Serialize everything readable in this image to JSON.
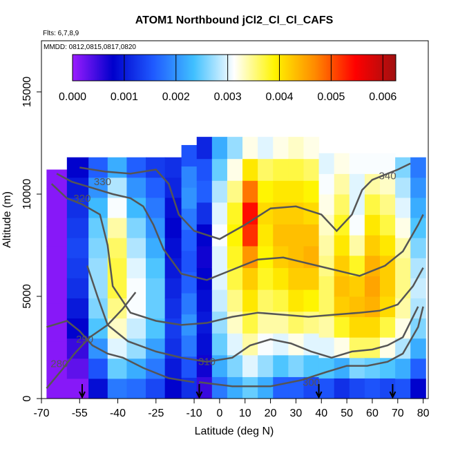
{
  "chart_data": {
    "type": "heatmap",
    "title": "ATOM1 Northbound jCl2_Cl_Cl_CAFS",
    "subtitle_flights": "Flts: 6,7,8,9",
    "subtitle_dates": "MMDD: 0812,0815,0817,0820",
    "xlabel": "Latitude (deg N)",
    "ylabel": "Altitude (m)",
    "xlim": [
      -70,
      82
    ],
    "ylim": [
      0,
      17500
    ],
    "x_ticks": [
      -70,
      -55,
      -40,
      -25,
      -10,
      0,
      10,
      20,
      30,
      40,
      50,
      60,
      70,
      80
    ],
    "y_ticks": [
      0,
      5000,
      10000,
      15000
    ],
    "colorbar": {
      "range": [
        0,
        0.00625
      ],
      "ticks": [
        "0.000",
        "0.001",
        "0.002",
        "0.003",
        "0.004",
        "0.005",
        "0.006"
      ],
      "tick_values": [
        0,
        0.001,
        0.002,
        0.003,
        0.004,
        0.005,
        0.006
      ],
      "colors": [
        "#9b1cff",
        "#0000cc",
        "#1f5aff",
        "#40c0ff",
        "#ffffff",
        "#fff500",
        "#ff8a00",
        "#ff0000",
        "#a01010"
      ]
    },
    "flight_arrows_lat": [
      -54,
      -8,
      39,
      68
    ],
    "columns": [
      {
        "lat": -65,
        "top": 11200,
        "values": [
          0.0001,
          0.0001,
          0.0001,
          0.0001,
          0.0001,
          0.0001,
          0.0001,
          0.0001,
          0.0001,
          0.0001,
          0.0001,
          0.0001
        ]
      },
      {
        "lat": -55,
        "top": 11800,
        "values": [
          0.0001,
          0.0003,
          0.0005,
          0.0008,
          0.001,
          0.0012,
          0.0013,
          0.0014,
          0.0013,
          0.0012,
          0.001,
          0.0008
        ]
      },
      {
        "lat": -48,
        "top": 11800,
        "values": [
          0.0009,
          0.0015,
          0.002,
          0.0024,
          0.0026,
          0.0027,
          0.0027,
          0.0026,
          0.0025,
          0.0023,
          0.002,
          0.0016
        ]
      },
      {
        "lat": -40,
        "top": 11800,
        "values": [
          0.0018,
          0.0025,
          0.003,
          0.0033,
          0.0035,
          0.0037,
          0.0037,
          0.0036,
          0.0034,
          0.0031,
          0.0028,
          0.0022
        ]
      },
      {
        "lat": -33,
        "top": 11800,
        "values": [
          0.0017,
          0.0022,
          0.0027,
          0.0029,
          0.0031,
          0.0031,
          0.003,
          0.0028,
          0.0026,
          0.0023,
          0.002,
          0.0016
        ]
      },
      {
        "lat": -25,
        "top": 11800,
        "values": [
          0.0014,
          0.0018,
          0.0021,
          0.0024,
          0.0025,
          0.0025,
          0.0024,
          0.0022,
          0.002,
          0.0018,
          0.0016,
          0.0013
        ]
      },
      {
        "lat": -18,
        "top": 11800,
        "values": [
          0.0008,
          0.001,
          0.0012,
          0.0013,
          0.0012,
          0.0011,
          0.001,
          0.0009,
          0.0008,
          0.0009,
          0.0011,
          0.0012
        ]
      },
      {
        "lat": -12,
        "top": 12400,
        "values": [
          0.0012,
          0.0015,
          0.0018,
          0.002,
          0.0018,
          0.0016,
          0.0015,
          0.0016,
          0.0018,
          0.002,
          0.0019,
          0.0015
        ]
      },
      {
        "lat": -6,
        "top": 12800,
        "values": [
          0.0005,
          0.0007,
          0.0009,
          0.001,
          0.0009,
          0.0008,
          0.0007,
          0.0008,
          0.0012,
          0.0016,
          0.0015,
          0.0011
        ]
      },
      {
        "lat": 0,
        "top": 12800,
        "values": [
          0.0018,
          0.0022,
          0.0025,
          0.0027,
          0.0029,
          0.003,
          0.003,
          0.0031,
          0.003,
          0.0028,
          0.0025,
          0.0022
        ]
      },
      {
        "lat": 6,
        "top": 12800,
        "values": [
          0.0022,
          0.0026,
          0.003,
          0.0033,
          0.0035,
          0.0037,
          0.0038,
          0.0039,
          0.0038,
          0.0035,
          0.0032,
          0.0027
        ]
      },
      {
        "lat": 12,
        "top": 12800,
        "values": [
          0.0025,
          0.003,
          0.0034,
          0.0037,
          0.004,
          0.0042,
          0.0046,
          0.0052,
          0.0054,
          0.0048,
          0.004,
          0.0032
        ]
      },
      {
        "lat": 18,
        "top": 12800,
        "values": [
          0.0022,
          0.0027,
          0.0031,
          0.0034,
          0.0036,
          0.0038,
          0.0039,
          0.004,
          0.0041,
          0.0039,
          0.0036,
          0.003
        ]
      },
      {
        "lat": 24,
        "top": 12800,
        "values": [
          0.0016,
          0.0024,
          0.003,
          0.0034,
          0.0037,
          0.004,
          0.0042,
          0.0043,
          0.0042,
          0.004,
          0.0037,
          0.0032
        ]
      },
      {
        "lat": 30,
        "top": 12800,
        "values": [
          0.0016,
          0.0026,
          0.0032,
          0.0036,
          0.004,
          0.0042,
          0.0043,
          0.0043,
          0.0042,
          0.004,
          0.0037,
          0.0033
        ]
      },
      {
        "lat": 36,
        "top": 12800,
        "values": [
          0.0014,
          0.0024,
          0.003,
          0.0035,
          0.0039,
          0.0042,
          0.0044,
          0.0043,
          0.0041,
          0.0039,
          0.0036,
          0.0032
        ]
      },
      {
        "lat": 42,
        "top": 12000,
        "values": [
          0.0015,
          0.0024,
          0.003,
          0.0034,
          0.0036,
          0.0036,
          0.0035,
          0.0034,
          0.0033,
          0.0032,
          0.0031,
          0.003
        ]
      },
      {
        "lat": 48,
        "top": 12000,
        "values": [
          0.0012,
          0.0022,
          0.0032,
          0.0038,
          0.0042,
          0.0043,
          0.0042,
          0.004,
          0.0038,
          0.0036,
          0.0034,
          0.0032
        ]
      },
      {
        "lat": 54,
        "top": 12000,
        "values": [
          0.0014,
          0.0026,
          0.0036,
          0.0041,
          0.0043,
          0.0042,
          0.0038,
          0.0034,
          0.0031,
          0.003,
          0.003,
          0.0031
        ]
      },
      {
        "lat": 60,
        "top": 12000,
        "values": [
          0.0015,
          0.0025,
          0.0036,
          0.0041,
          0.0044,
          0.0045,
          0.0044,
          0.0042,
          0.004,
          0.0037,
          0.0034,
          0.0031
        ]
      },
      {
        "lat": 66,
        "top": 12000,
        "values": [
          0.0014,
          0.0024,
          0.0032,
          0.0037,
          0.0041,
          0.0042,
          0.0042,
          0.004,
          0.0037,
          0.0035,
          0.0033,
          0.0031
        ]
      },
      {
        "lat": 72,
        "top": 11800,
        "values": [
          0.0015,
          0.0022,
          0.0028,
          0.0032,
          0.0034,
          0.0035,
          0.0035,
          0.0034,
          0.0032,
          0.003,
          0.0028,
          0.0026
        ]
      },
      {
        "lat": 78,
        "top": 11800,
        "values": [
          0.0008,
          0.0016,
          0.0022,
          0.0026,
          0.0028,
          0.0029,
          0.0028,
          0.0026,
          0.0024,
          0.0022,
          0.002,
          0.0018
        ]
      }
    ],
    "contours": [
      {
        "label": "280",
        "points": [
          [
            -68,
            500
          ],
          [
            -62,
            1400
          ],
          [
            -57,
            2200
          ],
          [
            -51,
            3000
          ],
          [
            -44,
            3600
          ],
          [
            -38,
            4400
          ],
          [
            -33,
            5200
          ]
        ],
        "label_at": [
          -63,
          1700
        ]
      },
      {
        "label": "290",
        "points": [
          [
            -68,
            3500
          ],
          [
            -60,
            3800
          ],
          [
            -55,
            3300
          ],
          [
            -50,
            2600
          ],
          [
            -44,
            2200
          ],
          [
            -38,
            2000
          ],
          [
            -30,
            1500
          ],
          [
            -20,
            1000
          ],
          [
            -10,
            800
          ]
        ],
        "label_at": [
          -53,
          2900
        ]
      },
      {
        "label": "300",
        "points": [
          [
            -8,
            800
          ],
          [
            5,
            600
          ],
          [
            20,
            600
          ],
          [
            32,
            900
          ],
          [
            42,
            1300
          ],
          [
            50,
            1600
          ],
          [
            58,
            1600
          ],
          [
            66,
            1800
          ],
          [
            72,
            2200
          ],
          [
            78,
            3500
          ],
          [
            80,
            4500
          ]
        ],
        "label_at": [
          36,
          800
        ]
      },
      {
        "label": "310",
        "points": [
          [
            -52,
            6500
          ],
          [
            -48,
            5000
          ],
          [
            -44,
            3600
          ],
          [
            -36,
            2800
          ],
          [
            -25,
            2300
          ],
          [
            -15,
            2000
          ],
          [
            -5,
            1800
          ],
          [
            5,
            2000
          ],
          [
            12,
            2600
          ],
          [
            20,
            2900
          ],
          [
            28,
            2700
          ],
          [
            36,
            2300
          ],
          [
            44,
            2000
          ],
          [
            52,
            2300
          ],
          [
            60,
            2400
          ],
          [
            66,
            2600
          ],
          [
            72,
            3000
          ],
          [
            78,
            4500
          ]
        ],
        "label_at": [
          -5,
          1800
        ]
      },
      {
        "label": "320",
        "points": [
          [
            -66,
            10500
          ],
          [
            -60,
            9800
          ],
          [
            -54,
            9500
          ],
          [
            -47,
            9000
          ],
          [
            -44,
            7500
          ],
          [
            -42,
            5500
          ],
          [
            -35,
            4200
          ],
          [
            -25,
            3800
          ],
          [
            -15,
            3600
          ],
          [
            -5,
            3700
          ],
          [
            5,
            4000
          ],
          [
            15,
            4200
          ],
          [
            25,
            4100
          ],
          [
            35,
            4000
          ],
          [
            45,
            4100
          ],
          [
            55,
            4200
          ],
          [
            63,
            4300
          ],
          [
            70,
            4600
          ],
          [
            76,
            5500
          ],
          [
            80,
            6400
          ]
        ],
        "label_at": [
          -54,
          9800
        ]
      },
      {
        "label": "330",
        "points": [
          [
            -64,
            11000
          ],
          [
            -58,
            10600
          ],
          [
            -50,
            10300
          ],
          [
            -42,
            10000
          ],
          [
            -35,
            9800
          ],
          [
            -30,
            9400
          ],
          [
            -26,
            8500
          ],
          [
            -22,
            7300
          ],
          [
            -15,
            6100
          ],
          [
            -5,
            5800
          ],
          [
            5,
            6300
          ],
          [
            15,
            6800
          ],
          [
            25,
            6900
          ],
          [
            35,
            6600
          ],
          [
            45,
            6300
          ],
          [
            55,
            6000
          ],
          [
            65,
            6500
          ],
          [
            72,
            7200
          ],
          [
            78,
            8500
          ],
          [
            80,
            9000
          ]
        ],
        "label_at": [
          -46,
          10600
        ]
      },
      {
        "label": "340",
        "points": [
          [
            -55,
            11300
          ],
          [
            -45,
            11100
          ],
          [
            -35,
            11000
          ],
          [
            -25,
            11200
          ],
          [
            -20,
            10500
          ],
          [
            -16,
            9000
          ],
          [
            -10,
            8200
          ],
          [
            0,
            7800
          ],
          [
            10,
            8500
          ],
          [
            20,
            9300
          ],
          [
            30,
            9400
          ],
          [
            40,
            9000
          ],
          [
            46,
            8200
          ],
          [
            52,
            9000
          ],
          [
            56,
            10200
          ],
          [
            60,
            10700
          ],
          [
            66,
            11000
          ],
          [
            70,
            11200
          ],
          [
            75,
            11500
          ]
        ],
        "label_at": [
          66,
          10900
        ]
      }
    ]
  }
}
